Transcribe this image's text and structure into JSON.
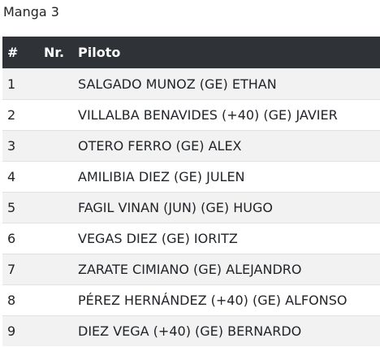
{
  "heading": "Manga 3",
  "table": {
    "headers": {
      "pos": "#",
      "nr": "Nr.",
      "piloto": "Piloto"
    },
    "rows": [
      {
        "pos": "1",
        "nr": "",
        "piloto": "SALGADO MUNOZ (GE) ETHAN"
      },
      {
        "pos": "2",
        "nr": "",
        "piloto": "VILLALBA BENAVIDES (+40) (GE) JAVIER"
      },
      {
        "pos": "3",
        "nr": "",
        "piloto": "OTERO FERRO (GE) ALEX"
      },
      {
        "pos": "4",
        "nr": "",
        "piloto": "AMILIBIA DIEZ (GE) JULEN"
      },
      {
        "pos": "5",
        "nr": "",
        "piloto": "FAGIL VINAN (JUN) (GE) HUGO"
      },
      {
        "pos": "6",
        "nr": "",
        "piloto": "VEGAS DIEZ (GE) IORITZ"
      },
      {
        "pos": "7",
        "nr": "",
        "piloto": "ZARATE CIMIANO (GE) ALEJANDRO"
      },
      {
        "pos": "8",
        "nr": "",
        "piloto": "PÉREZ HERNÁNDEZ (+40) (GE) ALFONSO"
      },
      {
        "pos": "9",
        "nr": "",
        "piloto": "DIEZ VEGA (+40) (GE) BERNARDO"
      }
    ]
  },
  "colors": {
    "header_bg": "#2f3237",
    "header_text": "#ffffff",
    "stripe_bg": "#f2f2f2",
    "row_border": "#dee2e6"
  }
}
